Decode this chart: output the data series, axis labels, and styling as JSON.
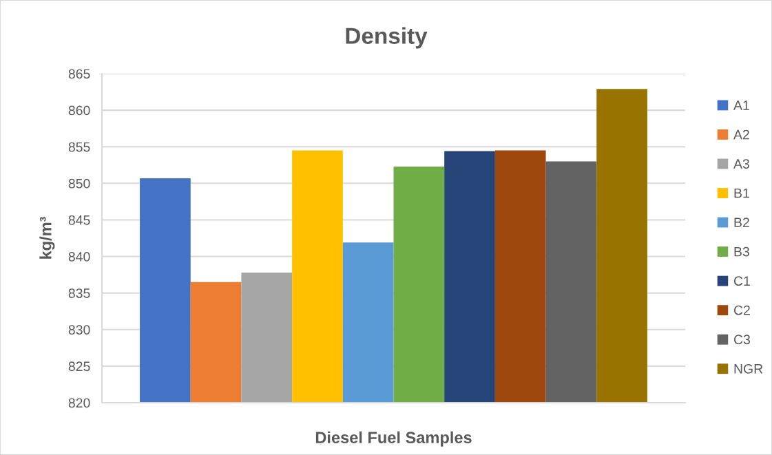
{
  "chart_data": {
    "type": "bar",
    "title": "Density",
    "xlabel": "Diesel Fuel Samples",
    "ylabel": "kg/m³",
    "categories": [
      null
    ],
    "series": [
      {
        "name": "A1",
        "color": "#4472c4",
        "values": [
          850.7
        ]
      },
      {
        "name": "A2",
        "color": "#ed7d31",
        "values": [
          836.5
        ]
      },
      {
        "name": "A3",
        "color": "#a5a5a5",
        "values": [
          837.8
        ]
      },
      {
        "name": "B1",
        "color": "#ffc000",
        "values": [
          854.5
        ]
      },
      {
        "name": "B2",
        "color": "#5b9bd5",
        "values": [
          841.9
        ]
      },
      {
        "name": "B3",
        "color": "#70ad47",
        "values": [
          852.3
        ]
      },
      {
        "name": "C1",
        "color": "#264478",
        "values": [
          854.4
        ]
      },
      {
        "name": "C2",
        "color": "#9e480e",
        "values": [
          854.5
        ]
      },
      {
        "name": "C3",
        "color": "#636363",
        "values": [
          853.0
        ]
      },
      {
        "name": "NGR",
        "color": "#997300",
        "values": [
          862.9
        ]
      }
    ],
    "ylim": [
      820,
      865
    ],
    "yticks": [
      820,
      825,
      830,
      835,
      840,
      845,
      850,
      855,
      860,
      865
    ],
    "grid": "y",
    "legend": "right",
    "tick_labels": "y"
  }
}
